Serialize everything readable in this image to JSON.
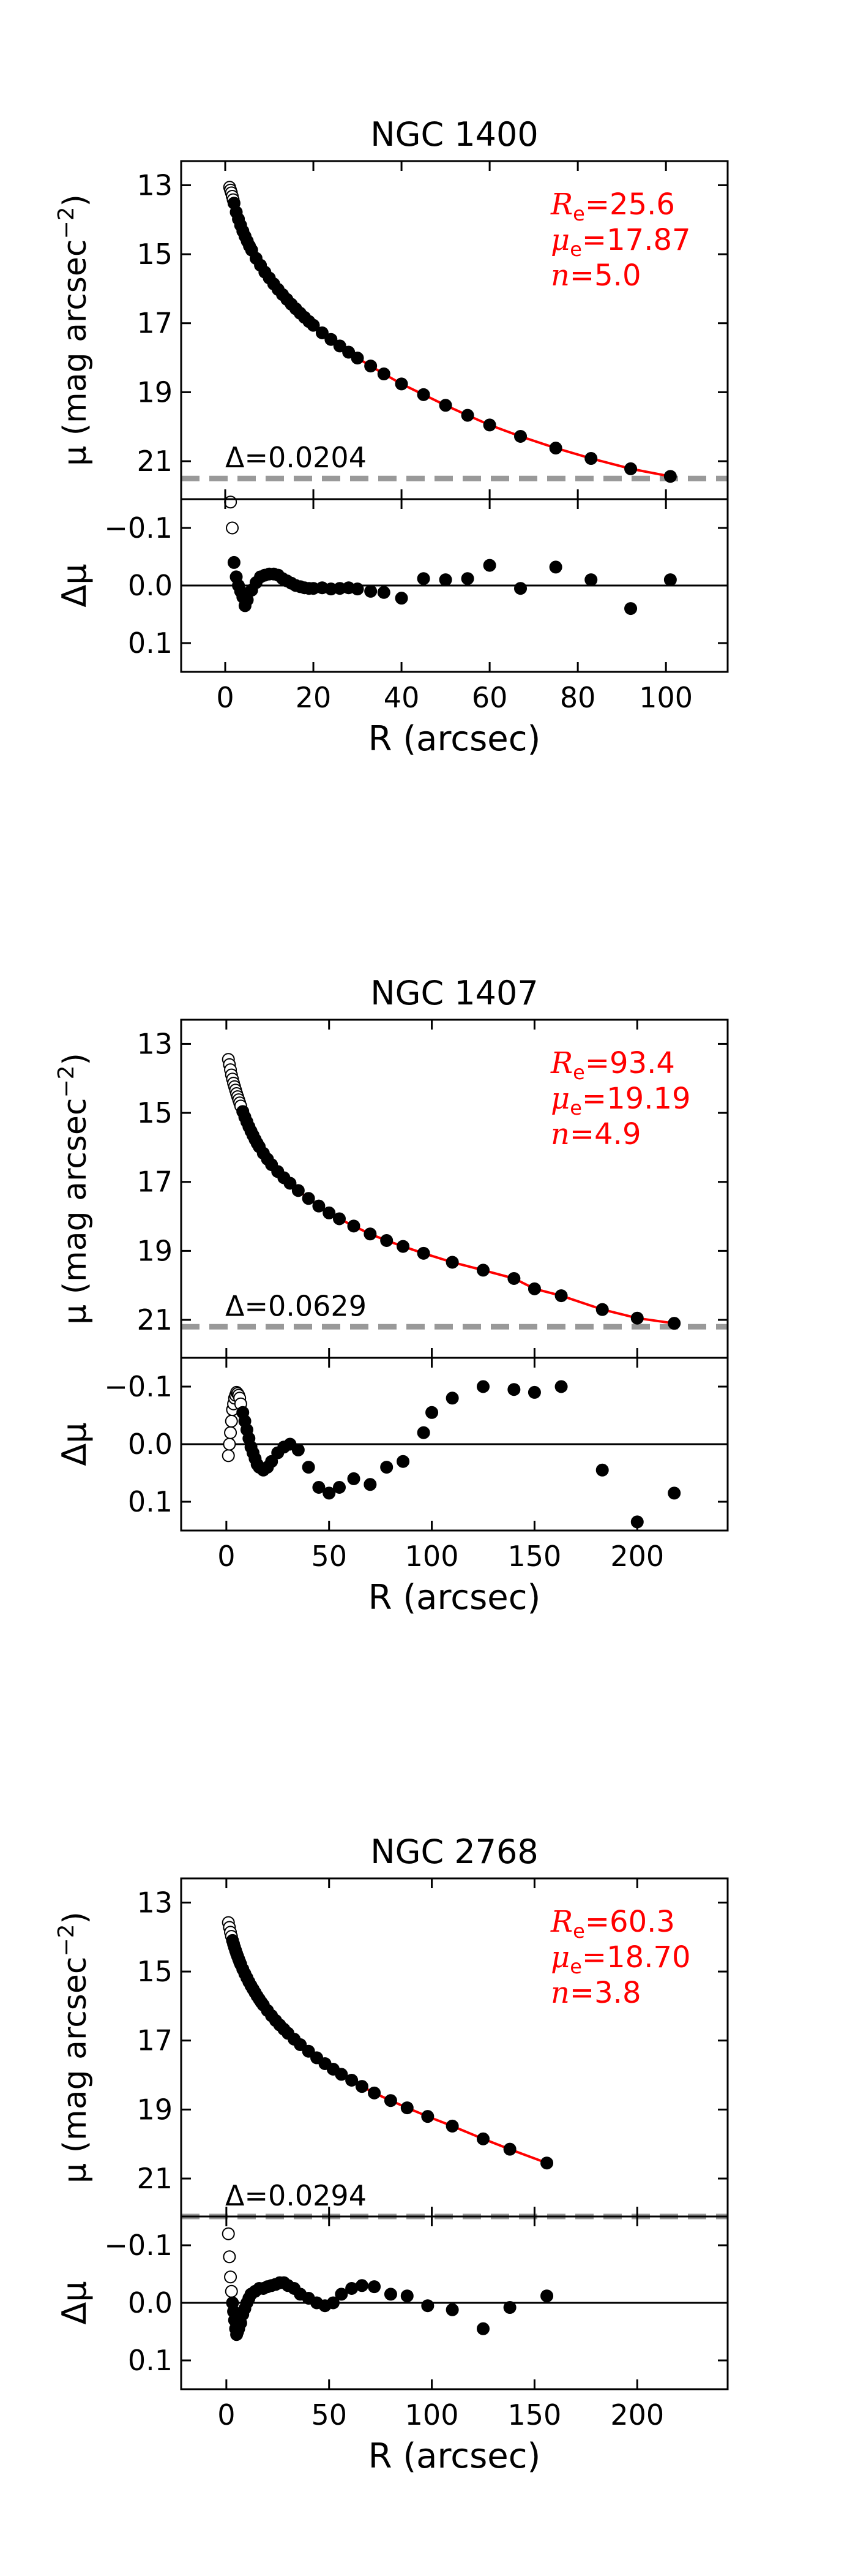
{
  "figure": {
    "colors": {
      "fit": "#ff0000",
      "annot": "#ff0000",
      "dash": "#999999",
      "axis": "#000000"
    }
  },
  "chart_data": [
    {
      "type": "scatter",
      "title": "NGC 1400",
      "xlabel": "R (arcsec)",
      "ylabel_main": "μ (mag arcsec",
      "ylabel_main_sup": "−2",
      "ylabel_main_end": ")",
      "ylabel_res": "Δμ",
      "xlim": [
        -10,
        114
      ],
      "ylim_main": [
        22.1,
        12.3
      ],
      "ylim_res": [
        0.15,
        -0.15
      ],
      "xticks": [
        0,
        20,
        40,
        60,
        80,
        100
      ],
      "xtick_labels": [
        "0",
        "20",
        "40",
        "60",
        "80",
        "100"
      ],
      "yticks_main": [
        13,
        15,
        17,
        19,
        21
      ],
      "ytick_labels_main": [
        "13",
        "15",
        "17",
        "19",
        "21"
      ],
      "yticks_res": [
        -0.1,
        0.0,
        0.1
      ],
      "ytick_labels_res": [
        "−0.1",
        "0.0",
        "0.1"
      ],
      "fit_params": {
        "Re": "25.6",
        "mu_e": "17.87",
        "n": "5.0"
      },
      "fit_labels": {
        "Re_sym": "R",
        "Re_sub": "e",
        "mu_sym": "μ",
        "mu_sub": "e",
        "n_sym": "n",
        "eq": "="
      },
      "rms_label": "Δ",
      "rms_value": "=0.0204",
      "sky_level": 21.5,
      "fit_range": [
        2,
        102
      ],
      "excluded_inner_r": 2,
      "points": [
        [
          1.0,
          13.06
        ],
        [
          1.2,
          13.14
        ],
        [
          1.4,
          13.22
        ],
        [
          1.6,
          13.32
        ],
        [
          1.8,
          13.42
        ],
        [
          2.0,
          13.52
        ],
        [
          2.5,
          13.78
        ],
        [
          3.0,
          13.98
        ],
        [
          3.5,
          14.16
        ],
        [
          4.0,
          14.33
        ],
        [
          4.5,
          14.48
        ],
        [
          5.0,
          14.62
        ],
        [
          5.5,
          14.76
        ],
        [
          6.0,
          14.88
        ],
        [
          7.0,
          15.12
        ],
        [
          8.0,
          15.32
        ],
        [
          9.0,
          15.52
        ],
        [
          10,
          15.69
        ],
        [
          11,
          15.86
        ],
        [
          12,
          16.02
        ],
        [
          13,
          16.17
        ],
        [
          14,
          16.31
        ],
        [
          15,
          16.45
        ],
        [
          16,
          16.58
        ],
        [
          17,
          16.71
        ],
        [
          18,
          16.83
        ],
        [
          19,
          16.95
        ],
        [
          20,
          17.06
        ],
        [
          22,
          17.28
        ],
        [
          24,
          17.47
        ],
        [
          26,
          17.66
        ],
        [
          28,
          17.84
        ],
        [
          30,
          18.01
        ],
        [
          33,
          18.24
        ],
        [
          36,
          18.47
        ],
        [
          40,
          18.76
        ],
        [
          45,
          19.07
        ],
        [
          50,
          19.38
        ],
        [
          55,
          19.67
        ],
        [
          60,
          19.95
        ],
        [
          67,
          20.28
        ],
        [
          75,
          20.62
        ],
        [
          83,
          20.92
        ],
        [
          92,
          21.22
        ],
        [
          101,
          21.44
        ]
      ],
      "residuals": [
        [
          1.2,
          -0.145
        ],
        [
          1.6,
          -0.1
        ],
        [
          2.0,
          -0.04
        ],
        [
          2.5,
          -0.015
        ],
        [
          3.0,
          0.0
        ],
        [
          3.5,
          0.01
        ],
        [
          4.0,
          0.02
        ],
        [
          4.5,
          0.035
        ],
        [
          5.0,
          0.025
        ],
        [
          6.0,
          0.008
        ],
        [
          7.0,
          -0.005
        ],
        [
          8.0,
          -0.015
        ],
        [
          9.0,
          -0.018
        ],
        [
          10,
          -0.02
        ],
        [
          11,
          -0.02
        ],
        [
          12,
          -0.018
        ],
        [
          13,
          -0.012
        ],
        [
          14,
          -0.008
        ],
        [
          15,
          -0.004
        ],
        [
          16,
          0.0
        ],
        [
          17,
          0.002
        ],
        [
          18,
          0.004
        ],
        [
          19,
          0.005
        ],
        [
          20,
          0.005
        ],
        [
          22,
          0.004
        ],
        [
          24,
          0.006
        ],
        [
          26,
          0.005
        ],
        [
          28,
          0.004
        ],
        [
          30,
          0.006
        ],
        [
          33,
          0.01
        ],
        [
          36,
          0.012
        ],
        [
          40,
          0.022
        ],
        [
          45,
          -0.012
        ],
        [
          50,
          -0.01
        ],
        [
          55,
          -0.012
        ],
        [
          60,
          -0.035
        ],
        [
          67,
          0.005
        ],
        [
          75,
          -0.032
        ],
        [
          83,
          -0.01
        ],
        [
          92,
          0.04
        ],
        [
          101,
          -0.01
        ]
      ]
    },
    {
      "type": "scatter",
      "title": "NGC 1407",
      "xlabel": "R (arcsec)",
      "ylabel_main": "μ (mag arcsec",
      "ylabel_main_sup": "−2",
      "ylabel_main_end": ")",
      "ylabel_res": "Δμ",
      "xlim": [
        -22,
        244
      ],
      "ylim_main": [
        22.1,
        12.3
      ],
      "ylim_res": [
        0.15,
        -0.15
      ],
      "xticks": [
        0,
        50,
        100,
        150,
        200
      ],
      "xtick_labels": [
        "0",
        "50",
        "100",
        "150",
        "200"
      ],
      "yticks_main": [
        13,
        15,
        17,
        19,
        21
      ],
      "ytick_labels_main": [
        "13",
        "15",
        "17",
        "19",
        "21"
      ],
      "yticks_res": [
        -0.1,
        0.0,
        0.1
      ],
      "ytick_labels_res": [
        "−0.1",
        "0.0",
        "0.1"
      ],
      "fit_params": {
        "Re": "93.4",
        "mu_e": "19.19",
        "n": "4.9"
      },
      "fit_labels": {
        "Re_sym": "R",
        "Re_sub": "e",
        "mu_sym": "μ",
        "mu_sub": "e",
        "n_sym": "n",
        "eq": "="
      },
      "rms_label": "Δ",
      "rms_value": "=0.0629",
      "sky_level": 21.2,
      "fit_range": [
        8,
        220
      ],
      "excluded_inner_r": 8,
      "points": [
        [
          1.0,
          13.45
        ],
        [
          1.5,
          13.6
        ],
        [
          2.0,
          13.75
        ],
        [
          2.5,
          13.9
        ],
        [
          3.0,
          14.02
        ],
        [
          3.5,
          14.14
        ],
        [
          4.0,
          14.24
        ],
        [
          4.5,
          14.34
        ],
        [
          5.0,
          14.44
        ],
        [
          5.5,
          14.53
        ],
        [
          6.0,
          14.62
        ],
        [
          6.5,
          14.71
        ],
        [
          7.0,
          14.8
        ],
        [
          8.0,
          14.96
        ],
        [
          9.0,
          15.12
        ],
        [
          10,
          15.26
        ],
        [
          11,
          15.4
        ],
        [
          12,
          15.53
        ],
        [
          13,
          15.65
        ],
        [
          14,
          15.77
        ],
        [
          15,
          15.88
        ],
        [
          16,
          15.98
        ],
        [
          18,
          16.17
        ],
        [
          20,
          16.34
        ],
        [
          22,
          16.5
        ],
        [
          25,
          16.7
        ],
        [
          28,
          16.88
        ],
        [
          31,
          17.04
        ],
        [
          35,
          17.25
        ],
        [
          40,
          17.48
        ],
        [
          45,
          17.7
        ],
        [
          50,
          17.9
        ],
        [
          55,
          18.07
        ],
        [
          62,
          18.28
        ],
        [
          70,
          18.51
        ],
        [
          78,
          18.7
        ],
        [
          86,
          18.87
        ],
        [
          96,
          19.07
        ],
        [
          110,
          19.33
        ],
        [
          125,
          19.56
        ],
        [
          140,
          19.8
        ],
        [
          150,
          20.1
        ],
        [
          163,
          20.3
        ],
        [
          183,
          20.7
        ],
        [
          200,
          20.95
        ],
        [
          218,
          21.1
        ]
      ],
      "residuals": [
        [
          1.0,
          0.02
        ],
        [
          1.5,
          0.0
        ],
        [
          2.0,
          -0.02
        ],
        [
          2.5,
          -0.04
        ],
        [
          3.0,
          -0.06
        ],
        [
          3.5,
          -0.07
        ],
        [
          4.0,
          -0.08
        ],
        [
          4.5,
          -0.085
        ],
        [
          5.0,
          -0.09
        ],
        [
          5.5,
          -0.088
        ],
        [
          6.0,
          -0.085
        ],
        [
          6.5,
          -0.08
        ],
        [
          7.0,
          -0.07
        ],
        [
          8.0,
          -0.055
        ],
        [
          9.0,
          -0.04
        ],
        [
          10,
          -0.025
        ],
        [
          11,
          -0.01
        ],
        [
          12,
          0.005
        ],
        [
          13,
          0.015
        ],
        [
          14,
          0.025
        ],
        [
          15,
          0.035
        ],
        [
          16,
          0.04
        ],
        [
          18,
          0.045
        ],
        [
          20,
          0.04
        ],
        [
          22,
          0.03
        ],
        [
          25,
          0.015
        ],
        [
          28,
          0.005
        ],
        [
          31,
          0.0
        ],
        [
          35,
          0.01
        ],
        [
          40,
          0.04
        ],
        [
          45,
          0.075
        ],
        [
          50,
          0.085
        ],
        [
          55,
          0.075
        ],
        [
          62,
          0.06
        ],
        [
          70,
          0.07
        ],
        [
          78,
          0.04
        ],
        [
          86,
          0.03
        ],
        [
          96,
          -0.02
        ],
        [
          100,
          -0.055
        ],
        [
          110,
          -0.08
        ],
        [
          125,
          -0.1
        ],
        [
          140,
          -0.095
        ],
        [
          150,
          -0.09
        ],
        [
          163,
          -0.1
        ],
        [
          183,
          0.045
        ],
        [
          200,
          0.135
        ],
        [
          218,
          0.085
        ]
      ]
    },
    {
      "type": "scatter",
      "title": "NGC 2768",
      "xlabel": "R (arcsec)",
      "ylabel_main": "μ (mag arcsec",
      "ylabel_main_sup": "−2",
      "ylabel_main_end": ")",
      "ylabel_res": "Δμ",
      "xlim": [
        -22,
        244
      ],
      "ylim_main": [
        22.1,
        12.3
      ],
      "ylim_res": [
        0.15,
        -0.15
      ],
      "xticks": [
        0,
        50,
        100,
        150,
        200
      ],
      "xtick_labels": [
        "0",
        "50",
        "100",
        "150",
        "200"
      ],
      "yticks_main": [
        13,
        15,
        17,
        19,
        21
      ],
      "ytick_labels_main": [
        "13",
        "15",
        "17",
        "19",
        "21"
      ],
      "yticks_res": [
        -0.1,
        0.0,
        0.1
      ],
      "ytick_labels_res": [
        "−0.1",
        "0.0",
        "0.1"
      ],
      "fit_params": {
        "Re": "60.3",
        "mu_e": "18.70",
        "n": "3.8"
      },
      "fit_labels": {
        "Re_sym": "R",
        "Re_sub": "e",
        "mu_sym": "μ",
        "mu_sub": "e",
        "n_sym": "n",
        "eq": "="
      },
      "rms_label": "Δ",
      "rms_value": "=0.0294",
      "sky_level": 22.1,
      "fit_range": [
        3,
        157
      ],
      "excluded_inner_r": 3,
      "points": [
        [
          1.0,
          13.58
        ],
        [
          1.5,
          13.72
        ],
        [
          2.0,
          13.86
        ],
        [
          2.5,
          13.98
        ],
        [
          3.0,
          14.1
        ],
        [
          3.5,
          14.2
        ],
        [
          4.0,
          14.3
        ],
        [
          4.5,
          14.39
        ],
        [
          5.0,
          14.48
        ],
        [
          5.5,
          14.56
        ],
        [
          6.0,
          14.64
        ],
        [
          6.5,
          14.72
        ],
        [
          7.0,
          14.79
        ],
        [
          8.0,
          14.93
        ],
        [
          9.0,
          15.06
        ],
        [
          10,
          15.18
        ],
        [
          11,
          15.3
        ],
        [
          12,
          15.41
        ],
        [
          13,
          15.51
        ],
        [
          14,
          15.61
        ],
        [
          15,
          15.71
        ],
        [
          16,
          15.8
        ],
        [
          17,
          15.89
        ],
        [
          18,
          15.97
        ],
        [
          20,
          16.13
        ],
        [
          22,
          16.28
        ],
        [
          24,
          16.42
        ],
        [
          26,
          16.55
        ],
        [
          28,
          16.67
        ],
        [
          30,
          16.79
        ],
        [
          33,
          16.96
        ],
        [
          36,
          17.12
        ],
        [
          40,
          17.31
        ],
        [
          44,
          17.5
        ],
        [
          48,
          17.67
        ],
        [
          52,
          17.83
        ],
        [
          56,
          17.98
        ],
        [
          61,
          18.15
        ],
        [
          66,
          18.33
        ],
        [
          72,
          18.52
        ],
        [
          80,
          18.74
        ],
        [
          88,
          18.95
        ],
        [
          98,
          19.2
        ],
        [
          110,
          19.48
        ],
        [
          125,
          19.85
        ],
        [
          138,
          20.15
        ],
        [
          156,
          20.55
        ]
      ],
      "residuals": [
        [
          1.0,
          -0.12
        ],
        [
          1.5,
          -0.08
        ],
        [
          2.0,
          -0.045
        ],
        [
          2.5,
          -0.02
        ],
        [
          3.0,
          0.0
        ],
        [
          3.5,
          0.015
        ],
        [
          4.0,
          0.03
        ],
        [
          4.5,
          0.045
        ],
        [
          5.0,
          0.055
        ],
        [
          5.5,
          0.05
        ],
        [
          6.0,
          0.045
        ],
        [
          7.0,
          0.035
        ],
        [
          8.0,
          0.02
        ],
        [
          9.0,
          0.01
        ],
        [
          10,
          0.0
        ],
        [
          11,
          -0.008
        ],
        [
          12,
          -0.015
        ],
        [
          14,
          -0.02
        ],
        [
          16,
          -0.025
        ],
        [
          18,
          -0.025
        ],
        [
          20,
          -0.028
        ],
        [
          22,
          -0.03
        ],
        [
          24,
          -0.032
        ],
        [
          26,
          -0.035
        ],
        [
          28,
          -0.035
        ],
        [
          30,
          -0.03
        ],
        [
          33,
          -0.025
        ],
        [
          36,
          -0.015
        ],
        [
          40,
          -0.008
        ],
        [
          44,
          0.0
        ],
        [
          48,
          0.005
        ],
        [
          52,
          0.0
        ],
        [
          56,
          -0.015
        ],
        [
          61,
          -0.025
        ],
        [
          66,
          -0.03
        ],
        [
          72,
          -0.028
        ],
        [
          80,
          -0.015
        ],
        [
          88,
          -0.012
        ],
        [
          98,
          0.005
        ],
        [
          110,
          0.012
        ],
        [
          125,
          0.045
        ],
        [
          138,
          0.008
        ],
        [
          156,
          -0.012
        ]
      ]
    }
  ]
}
